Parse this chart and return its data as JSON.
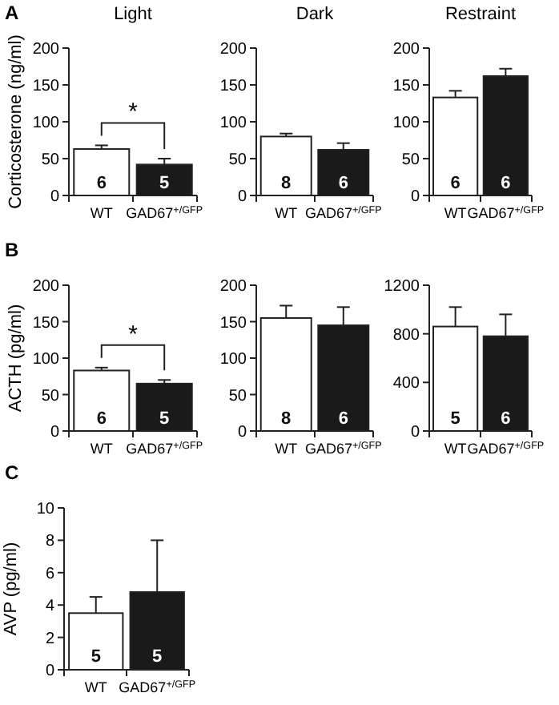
{
  "chart_data": [
    {
      "type": "bar",
      "title": "Light",
      "ylabel": "Corticosterone (ng/ml)",
      "categories": [
        "WT",
        "GAD67$^{+/GFP}$"
      ],
      "values": [
        63,
        42
      ],
      "colors": [
        "#ffffff",
        "#1a1a1a"
      ],
      "errors": [
        [
          63,
          68
        ],
        [
          42,
          50
        ]
      ],
      "ylim": [
        0,
        200
      ],
      "yticks": [
        0,
        50,
        100,
        150,
        200
      ],
      "annotations": [
        "A",
        "*",
        {
          "text": "6",
          "x": "WT",
          "y": 10
        },
        {
          "text": "5",
          "x": "GAD67$^{+/GFP}$",
          "y": 10
        }
      ]
    },
    {
      "type": "bar",
      "title": "Dark",
      "categories": [
        "WT",
        "GAD67$^{+/GFP}$"
      ],
      "values": [
        80,
        62
      ],
      "colors": [
        "#ffffff",
        "#1a1a1a"
      ],
      "errors": [
        [
          80,
          84
        ],
        [
          62,
          71
        ]
      ],
      "ylim": [
        0,
        200
      ],
      "yticks": [
        0,
        50,
        100,
        150,
        200
      ],
      "annotations": [
        {
          "text": "8",
          "x": "WT",
          "y": 10
        },
        {
          "text": "6",
          "x": "GAD67$^{+/GFP}$",
          "y": 10
        }
      ]
    },
    {
      "type": "bar",
      "title": "Restraint",
      "categories": [
        "WT",
        "GAD67$^{+/GFP}$"
      ],
      "values": [
        133,
        162
      ],
      "colors": [
        "#ffffff",
        "#1a1a1a"
      ],
      "errors": [
        [
          133,
          142
        ],
        [
          162,
          172
        ]
      ],
      "ylim": [
        0,
        200
      ],
      "yticks": [
        0,
        50,
        100,
        150,
        200
      ],
      "annotations": [
        {
          "text": "6",
          "x": "WT",
          "y": 10
        },
        {
          "text": "6",
          "x": "GAD67$^{+/GFP}$",
          "y": 10
        }
      ]
    },
    {
      "type": "bar",
      "ylabel": "ACTH (pg/ml)",
      "categories": [
        "WT",
        "GAD67$^{+/GFP}$"
      ],
      "values": [
        83,
        65
      ],
      "colors": [
        "#ffffff",
        "#1a1a1a"
      ],
      "errors": [
        [
          83,
          87
        ],
        [
          65,
          70
        ]
      ],
      "ylim": [
        0,
        200
      ],
      "yticks": [
        0,
        50,
        100,
        150,
        200
      ],
      "annotations": [
        "B",
        "*",
        {
          "text": "6",
          "x": "WT",
          "y": 10
        },
        {
          "text": "5",
          "x": "GAD67$^{+/GFP}$",
          "y": 10
        }
      ]
    },
    {
      "type": "bar",
      "categories": [
        "WT",
        "GAD67$^{+/GFP}$"
      ],
      "values": [
        155,
        145
      ],
      "colors": [
        "#ffffff",
        "#1a1a1a"
      ],
      "errors": [
        [
          155,
          172
        ],
        [
          145,
          170
        ]
      ],
      "ylim": [
        0,
        200
      ],
      "yticks": [
        0,
        50,
        100,
        150,
        200
      ],
      "annotations": [
        {
          "text": "8",
          "x": "WT",
          "y": 10
        },
        {
          "text": "6",
          "x": "GAD67$^{+/GFP}$",
          "y": 10
        }
      ]
    },
    {
      "type": "bar",
      "categories": [
        "WT",
        "GAD67$^{+/GFP}$"
      ],
      "values": [
        860,
        780
      ],
      "colors": [
        "#ffffff",
        "#1a1a1a"
      ],
      "errors": [
        [
          860,
          1020
        ],
        [
          780,
          960
        ]
      ],
      "ylim": [
        0,
        1200
      ],
      "yticks": [
        0,
        400,
        800,
        1200
      ],
      "annotations": [
        {
          "text": "5",
          "x": "WT",
          "y": 60
        },
        {
          "text": "6",
          "x": "GAD67$^{+/GFP}$",
          "y": 60
        }
      ]
    },
    {
      "type": "bar",
      "ylabel": "AVP (pg/ml)",
      "categories": [
        "WT",
        "GAD67$^{+/GFP}$"
      ],
      "values": [
        3.5,
        4.8
      ],
      "colors": [
        "#ffffff",
        "#1a1a1a"
      ],
      "errors": [
        [
          3.5,
          4.5
        ],
        [
          4.8,
          8.0
        ]
      ],
      "ylim": [
        0,
        10
      ],
      "yticks": [
        0,
        2,
        4,
        6,
        8,
        10
      ],
      "annotations": [
        "C",
        {
          "text": "5",
          "x": "WT",
          "y": 0.5
        },
        {
          "text": "5",
          "x": "GAD67$^{+/GFP}$",
          "y": 0.5
        }
      ]
    }
  ]
}
